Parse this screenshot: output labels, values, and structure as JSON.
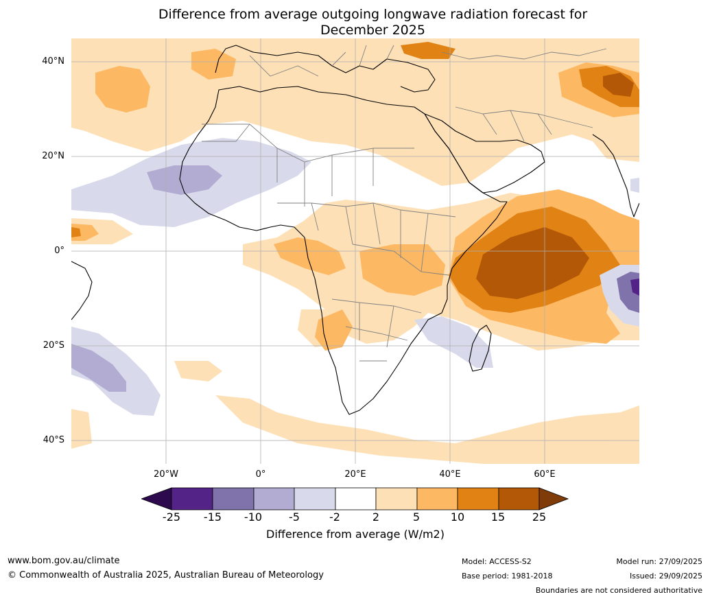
{
  "title": {
    "line1": "Difference from average outgoing longwave radiation forecast for",
    "line2": "December 2025"
  },
  "axes": {
    "lat_labels": [
      "40°N",
      "20°N",
      "0°",
      "20°S",
      "40°S"
    ],
    "lon_labels": [
      "20°W",
      "0°",
      "20°E",
      "40°E",
      "60°E"
    ]
  },
  "legend": {
    "title": "Difference from average (W/m2)",
    "ticks": [
      "-25",
      "-15",
      "-10",
      "-5",
      "-2",
      "2",
      "5",
      "10",
      "15",
      "25"
    ],
    "colors": {
      "below_min": "#2d0a4e",
      "c1": "#542387",
      "c2": "#8073ac",
      "c3": "#b2abd2",
      "c4": "#d8daeb",
      "c5": "#ffffff",
      "c6": "#fee0b6",
      "c7": "#fdb863",
      "c8": "#e08214",
      "c9": "#b35806",
      "above_max": "#7f3b08"
    }
  },
  "footer": {
    "website": "www.bom.gov.au/climate",
    "copyright": "© Commonwealth of Australia 2025, Australian Bureau of Meteorology",
    "model": "Model: ACCESS-S2",
    "base_period": "Base period: 1981-2018",
    "model_run": "Model run: 27/09/2025",
    "issued": "Issued: 29/09/2025",
    "disclaimer": "Boundaries are not considered authoritative"
  }
}
